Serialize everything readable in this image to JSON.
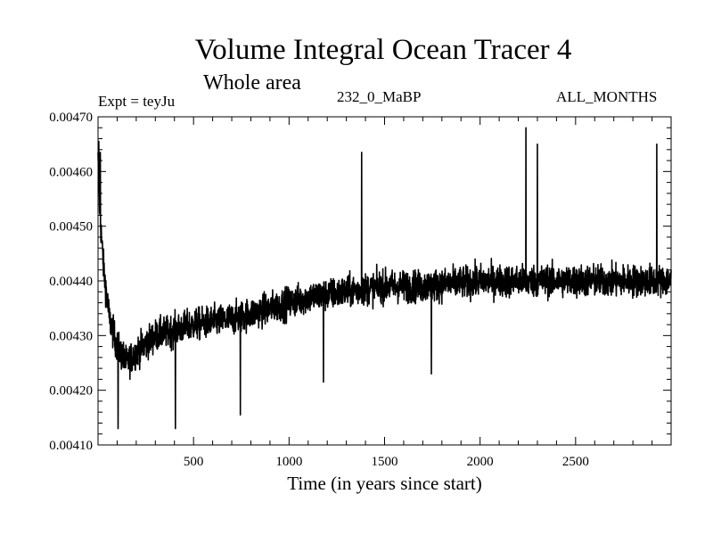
{
  "header": {
    "title": "Volume Integral Ocean Tracer 4",
    "subtitle": "Whole area",
    "experiment": "Expt = teyJu",
    "run_id": "232_0_MaBP",
    "months": "ALL_MONTHS"
  },
  "chart_data": {
    "type": "line",
    "title": "Volume Integral Ocean Tracer 4",
    "subtitle": "Whole area",
    "xlabel": "Time (in years since start)",
    "ylabel": "",
    "xlim": [
      0,
      3000
    ],
    "ylim": [
      0.0041,
      0.0047
    ],
    "x_ticks": [
      500,
      1000,
      1500,
      2000,
      2500
    ],
    "x_tick_labels": [
      "500",
      "1000",
      "1500",
      "2000",
      "2500"
    ],
    "y_ticks": [
      0.0041,
      0.0042,
      0.0043,
      0.0044,
      0.0045,
      0.0046,
      0.0047
    ],
    "y_tick_labels": [
      "0.00410",
      "0.00420",
      "0.00430",
      "0.00440",
      "0.00450",
      "0.00460",
      "0.00470"
    ],
    "grid": false,
    "series": [
      {
        "name": "Volume Integral Ocean Tracer 4",
        "color": "#000000",
        "trend": {
          "x": [
            0,
            10,
            30,
            60,
            100,
            150,
            200,
            300,
            400,
            500,
            700,
            900,
            1100,
            1300,
            1500,
            1700,
            2000,
            2300,
            2600,
            3000
          ],
          "y": [
            0.00462,
            0.00452,
            0.00442,
            0.00433,
            0.00428,
            0.00425,
            0.00427,
            0.0043,
            0.00431,
            0.00432,
            0.00433,
            0.00435,
            0.00437,
            0.00438,
            0.00439,
            0.00439,
            0.0044,
            0.0044,
            0.0044,
            0.0044
          ]
        },
        "noise_amplitude": 5e-05,
        "peaks": [
          {
            "x": 4,
            "y": 0.004655
          },
          {
            "x": 12,
            "y": 0.004635
          },
          {
            "x": 105,
            "y": 0.00413
          },
          {
            "x": 405,
            "y": 0.00413
          },
          {
            "x": 745,
            "y": 0.004155
          },
          {
            "x": 1180,
            "y": 0.004215
          },
          {
            "x": 1380,
            "y": 0.004635
          },
          {
            "x": 1745,
            "y": 0.00423
          },
          {
            "x": 2240,
            "y": 0.00468
          },
          {
            "x": 2300,
            "y": 0.00465
          },
          {
            "x": 2925,
            "y": 0.00465
          }
        ],
        "n_points": 3000
      }
    ]
  }
}
